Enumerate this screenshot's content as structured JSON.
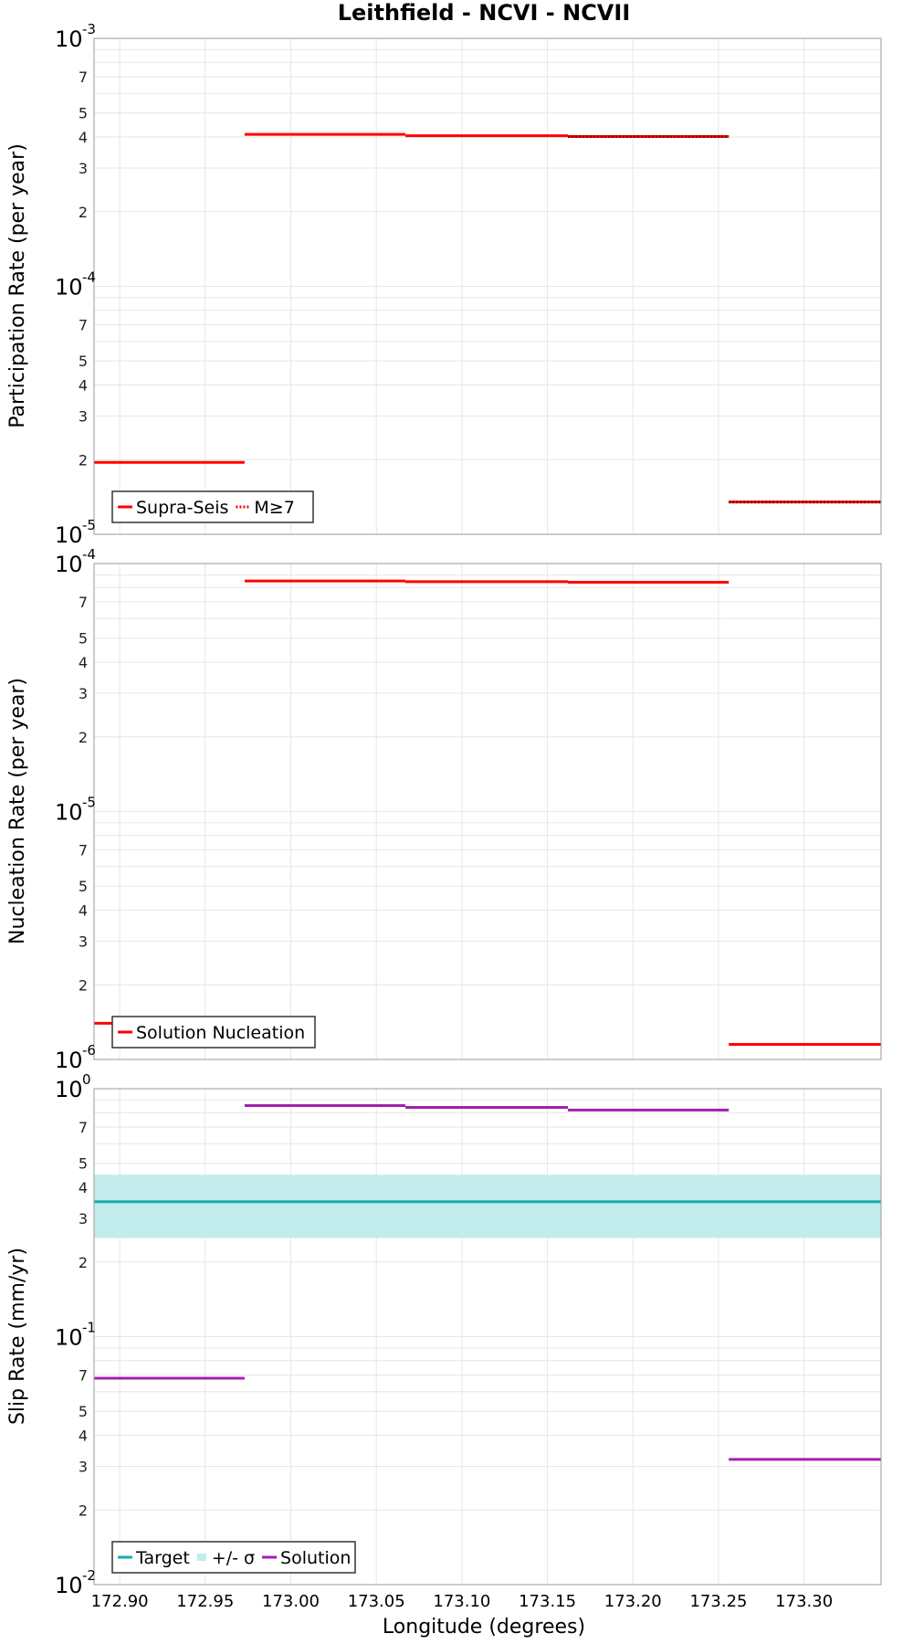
{
  "title": "Leithfield - NCVI - NCVII",
  "xlabel": "Longitude (degrees)",
  "chart_data": [
    {
      "type": "line",
      "ylabel": "Participation Rate (per year)",
      "yscale": "log",
      "ylim": [
        1e-05,
        0.001
      ],
      "xlim": [
        172.885,
        173.345
      ],
      "series": [
        {
          "name": "Supra-Seis",
          "color": "#ff0000",
          "style": "solid",
          "segments": [
            {
              "x0": 172.885,
              "x1": 172.973,
              "y": 1.95e-05
            },
            {
              "x0": 172.973,
              "x1": 173.067,
              "y": 0.00041
            },
            {
              "x0": 173.067,
              "x1": 173.162,
              "y": 0.000405
            },
            {
              "x0": 173.162,
              "x1": 173.256,
              "y": 0.000402
            },
            {
              "x0": 173.256,
              "x1": 173.345,
              "y": 1.35e-05
            }
          ]
        },
        {
          "name": "M≥7",
          "color": "#ff0000",
          "style": "dotted",
          "segments": [
            {
              "x0": 173.162,
              "x1": 173.256,
              "y": 0.000402
            },
            {
              "x0": 173.256,
              "x1": 173.345,
              "y": 1.35e-05
            }
          ]
        }
      ],
      "legend": [
        {
          "label": "Supra-Seis",
          "color": "#ff0000",
          "kind": "solid"
        },
        {
          "label": "M≥7",
          "color": "#ff0000",
          "kind": "dotted"
        }
      ]
    },
    {
      "type": "line",
      "ylabel": "Nucleation Rate (per year)",
      "yscale": "log",
      "ylim": [
        1e-06,
        0.0001
      ],
      "xlim": [
        172.885,
        173.345
      ],
      "series": [
        {
          "name": "Solution Nucleation",
          "color": "#ff0000",
          "style": "solid",
          "segments": [
            {
              "x0": 172.885,
              "x1": 172.973,
              "y": 1.4e-06
            },
            {
              "x0": 172.973,
              "x1": 173.067,
              "y": 8.5e-05
            },
            {
              "x0": 173.067,
              "x1": 173.162,
              "y": 8.45e-05
            },
            {
              "x0": 173.162,
              "x1": 173.256,
              "y": 8.4e-05
            },
            {
              "x0": 173.256,
              "x1": 173.345,
              "y": 1.15e-06
            }
          ]
        }
      ],
      "legend": [
        {
          "label": "Solution Nucleation",
          "color": "#ff0000",
          "kind": "solid"
        }
      ]
    },
    {
      "type": "line",
      "ylabel": "Slip Rate (mm/yr)",
      "yscale": "log",
      "ylim": [
        0.01,
        1
      ],
      "xlim": [
        172.885,
        173.345
      ],
      "series": [
        {
          "name": "Target",
          "color": "#1aadad",
          "style": "solid",
          "segments": [
            {
              "x0": 172.885,
              "x1": 173.345,
              "y": 0.35
            }
          ]
        },
        {
          "name": "Solution",
          "color": "#a020b0",
          "style": "solid",
          "segments": [
            {
              "x0": 172.885,
              "x1": 172.973,
              "y": 0.068
            },
            {
              "x0": 172.973,
              "x1": 173.067,
              "y": 0.855
            },
            {
              "x0": 173.067,
              "x1": 173.162,
              "y": 0.84
            },
            {
              "x0": 173.162,
              "x1": 173.256,
              "y": 0.82
            },
            {
              "x0": 173.256,
              "x1": 173.345,
              "y": 0.032
            }
          ]
        }
      ],
      "band": {
        "name": "+/- σ",
        "color": "#c2ecec",
        "low": 0.25,
        "high": 0.45,
        "x0": 172.885,
        "x1": 173.345
      },
      "legend": [
        {
          "label": "Target",
          "color": "#1aadad",
          "kind": "solid"
        },
        {
          "label": "+/- σ",
          "color": "#c2ecec",
          "kind": "band"
        },
        {
          "label": "Solution",
          "color": "#a020b0",
          "kind": "solid"
        }
      ]
    }
  ],
  "x_ticks": [
    "172.90",
    "172.95",
    "173.00",
    "173.05",
    "173.10",
    "173.15",
    "173.20",
    "173.25",
    "173.30"
  ],
  "y_ticks": [
    {
      "minor": [
        "2",
        "3",
        "4",
        "5",
        "7"
      ],
      "major": [
        {
          "mant": "10",
          "exp": "-5"
        },
        {
          "mant": "10",
          "exp": "-4"
        },
        {
          "mant": "10",
          "exp": "-3"
        }
      ]
    },
    {
      "minor": [
        "2",
        "3",
        "4",
        "5",
        "7"
      ],
      "major": [
        {
          "mant": "10",
          "exp": "-6"
        },
        {
          "mant": "10",
          "exp": "-5"
        },
        {
          "mant": "10",
          "exp": "-4"
        }
      ]
    },
    {
      "minor": [
        "2",
        "3",
        "4",
        "5",
        "7"
      ],
      "major": [
        {
          "mant": "10",
          "exp": "-2"
        },
        {
          "mant": "10",
          "exp": "-1"
        },
        {
          "mant": "10",
          "exp": "0"
        }
      ]
    }
  ]
}
